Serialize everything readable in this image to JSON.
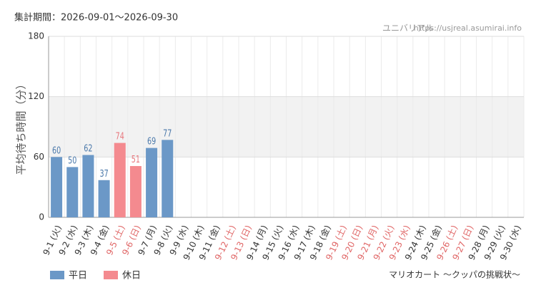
{
  "chart_data": {
    "type": "bar",
    "period": "集計期間：2026-09-01～2026-09-30",
    "site": "ユニバリアル",
    "url": "https://usjreal.asumirai.info",
    "attraction": "マリオカート ～クッパの挑戦状～",
    "y_label": "平均待ち時間（分）",
    "categories": [
      "9-1 (火)",
      "9-2 (水)",
      "9-3 (木)",
      "9-4 (金)",
      "9-5 (土)",
      "9-6 (日)",
      "9-7 (月)",
      "9-8 (火)",
      "9-9 (水)",
      "9-10 (木)",
      "9-11 (金)",
      "9-12 (土)",
      "9-13 (日)",
      "9-14 (月)",
      "9-15 (火)",
      "9-16 (水)",
      "9-17 (木)",
      "9-18 (金)",
      "9-19 (土)",
      "9-20 (日)",
      "9-21 (月)",
      "9-22 (火)",
      "9-23 (水)",
      "9-24 (木)",
      "9-25 (金)",
      "9-26 (土)",
      "9-27 (日)",
      "9-28 (月)",
      "9-29 (火)",
      "9-30 (水)"
    ],
    "label_colors": [
      "#333",
      "#333",
      "#333",
      "#333",
      "#e06666",
      "#e06666",
      "#333",
      "#333",
      "#333",
      "#333",
      "#333",
      "#e06666",
      "#e06666",
      "#333",
      "#333",
      "#333",
      "#333",
      "#333",
      "#e06666",
      "#e06666",
      "#e06666",
      "#e06666",
      "#e06666",
      "#333",
      "#333",
      "#e06666",
      "#e06666",
      "#333",
      "#333",
      "#333"
    ],
    "series": [
      {
        "name": "平日",
        "color": "#6b98c7",
        "values": [
          60,
          50,
          62,
          37,
          null,
          null,
          69,
          77,
          null,
          null,
          null,
          null,
          null,
          null,
          null,
          null,
          null,
          null,
          null,
          null,
          null,
          null,
          null,
          null,
          null,
          null,
          null,
          null,
          null,
          null
        ]
      },
      {
        "name": "休日",
        "color": "#f48a8f",
        "values": [
          null,
          null,
          null,
          null,
          74,
          51,
          null,
          null,
          null,
          null,
          null,
          null,
          null,
          null,
          null,
          null,
          null,
          null,
          null,
          null,
          null,
          null,
          null,
          null,
          null,
          null,
          null,
          null,
          null,
          null
        ]
      }
    ],
    "label_colors_values": {
      "平日": "#4a78aa",
      "休日": "#e8777d"
    },
    "ylim": [
      0,
      180
    ],
    "yticks": [
      0,
      60,
      120,
      180
    ],
    "grid": true
  }
}
